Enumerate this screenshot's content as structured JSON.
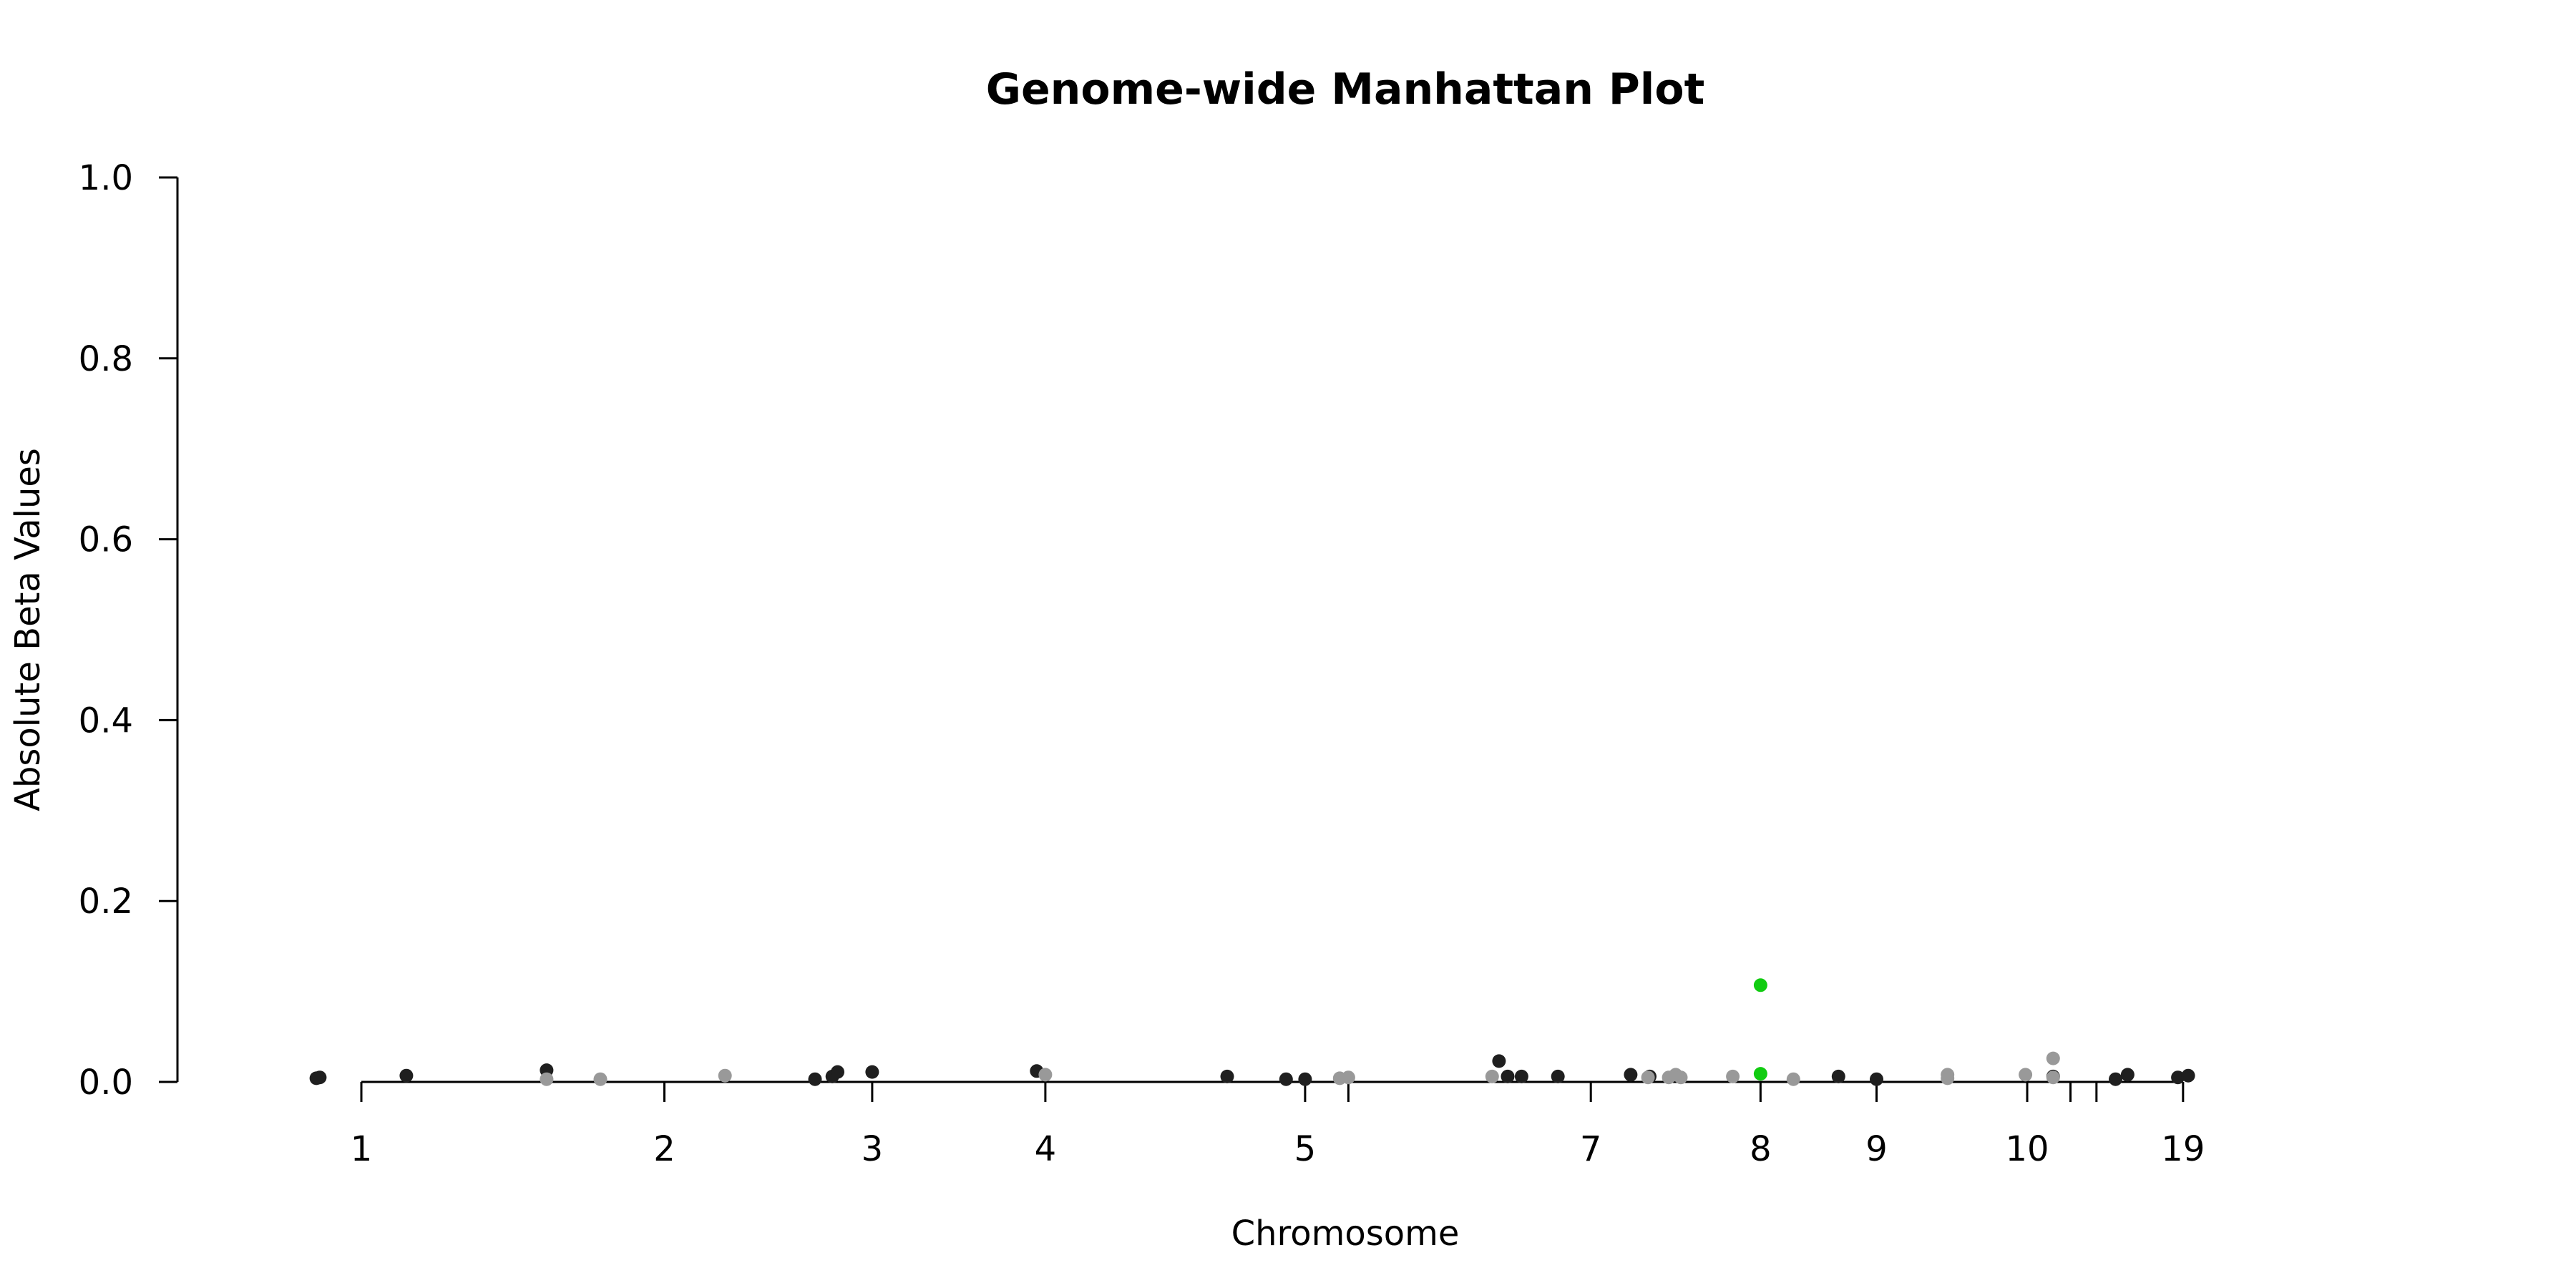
{
  "chart_data": {
    "type": "scatter",
    "title": "Genome-wide Manhattan Plot",
    "xlabel": "Chromosome",
    "ylabel": "Absolute Beta Values",
    "ylim": [
      0,
      1
    ],
    "yticks": [
      "0.0",
      "0.2",
      "0.4",
      "0.6",
      "0.8",
      "1.0"
    ],
    "x_ticks": [
      {
        "label": "1",
        "pos": 0.08
      },
      {
        "label": "2",
        "pos": 0.255
      },
      {
        "label": "3",
        "pos": 0.375
      },
      {
        "label": "4",
        "pos": 0.475
      },
      {
        "label": "5",
        "pos": 0.625
      },
      {
        "label": "",
        "pos": 0.65
      },
      {
        "label": "7",
        "pos": 0.79
      },
      {
        "label": "8",
        "pos": 0.888
      },
      {
        "label": "9",
        "pos": 0.955
      },
      {
        "label": "10",
        "pos": 1.042
      },
      {
        "label": "",
        "pos": 1.067
      },
      {
        "label": "",
        "pos": 1.082
      },
      {
        "label": "19",
        "pos": 1.132
      }
    ],
    "colors": {
      "odd": "#1f1f1f",
      "even": "#999999",
      "highlight": "#11cc11"
    },
    "series": [
      {
        "group": "odd",
        "points": [
          [
            0.054,
            0.004
          ],
          [
            0.056,
            0.005
          ],
          [
            0.106,
            0.007
          ],
          [
            0.187,
            0.013
          ],
          [
            0.342,
            0.003
          ],
          [
            0.352,
            0.006
          ],
          [
            0.355,
            0.011
          ],
          [
            0.375,
            0.011
          ],
          [
            0.47,
            0.012
          ],
          [
            0.58,
            0.006
          ],
          [
            0.614,
            0.003
          ],
          [
            0.625,
            0.003
          ],
          [
            0.737,
            0.023
          ],
          [
            0.742,
            0.006
          ],
          [
            0.75,
            0.006
          ],
          [
            0.771,
            0.006
          ],
          [
            0.813,
            0.008
          ],
          [
            0.824,
            0.006
          ],
          [
            0.933,
            0.006
          ],
          [
            0.955,
            0.003
          ],
          [
            1.057,
            0.006
          ],
          [
            1.093,
            0.003
          ],
          [
            1.1,
            0.008
          ],
          [
            1.129,
            0.005
          ],
          [
            1.135,
            0.007
          ]
        ]
      },
      {
        "group": "even",
        "points": [
          [
            0.187,
            0.003
          ],
          [
            0.218,
            0.003
          ],
          [
            0.29,
            0.007
          ],
          [
            0.475,
            0.008
          ],
          [
            0.645,
            0.004
          ],
          [
            0.65,
            0.005
          ],
          [
            0.733,
            0.006
          ],
          [
            0.823,
            0.005
          ],
          [
            0.835,
            0.005
          ],
          [
            0.839,
            0.008
          ],
          [
            0.842,
            0.005
          ],
          [
            0.872,
            0.006
          ],
          [
            0.907,
            0.003
          ],
          [
            0.996,
            0.008
          ],
          [
            0.996,
            0.004
          ],
          [
            1.041,
            0.008
          ],
          [
            1.057,
            0.026
          ],
          [
            1.057,
            0.005
          ]
        ]
      },
      {
        "group": "highlight",
        "points": [
          [
            0.888,
            0.107
          ],
          [
            0.888,
            0.009
          ]
        ]
      }
    ]
  }
}
